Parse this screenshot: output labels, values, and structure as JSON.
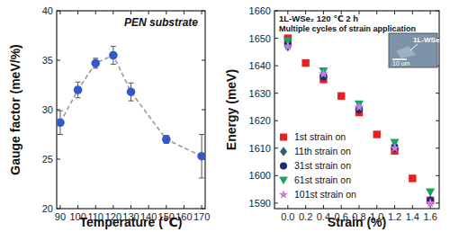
{
  "chart_data": [
    {
      "type": "scatter",
      "title": "PEN substrate",
      "x_label": "Temperature (℃)",
      "y_label": "Gauge factor (meV/%)",
      "x": [
        90,
        100,
        110,
        120,
        130,
        150,
        170
      ],
      "series": [
        {
          "values": [
            28.7,
            32.0,
            34.7,
            35.5,
            31.8,
            27.0,
            25.3
          ],
          "errors": [
            1.2,
            0.8,
            0.5,
            0.9,
            0.9,
            0.4,
            2.2
          ],
          "color": "#3358c8",
          "marker": "circle",
          "line_style": "dashed"
        }
      ],
      "xlim": [
        88,
        172
      ],
      "xticks": [
        90,
        100,
        110,
        120,
        130,
        140,
        150,
        160,
        170
      ],
      "ylim": [
        20,
        40
      ],
      "yticks": [
        20,
        25,
        30,
        35,
        40
      ],
      "grid": false
    },
    {
      "type": "scatter",
      "x_label": "Strain (%)",
      "y_label": "Energy (meV)",
      "annotations": [
        "1L-WSe₂ 120 ℃ 2 h",
        "Multiple cycles of strain application",
        "1L-WSe₂",
        "10 um"
      ],
      "x": [
        0.0,
        0.2,
        0.4,
        0.6,
        0.8,
        1.0,
        1.2,
        1.4,
        1.6
      ],
      "series": [
        {
          "name": "1st strain on",
          "color": "#e8201e",
          "marker": "square",
          "values": [
            1650,
            1641,
            1635,
            1629,
            1623,
            1615,
            1609,
            1599,
            1591
          ]
        },
        {
          "name": "11th strain on",
          "color": "#2e5d73",
          "marker": "diamond",
          "values": [
            1647,
            null,
            1637,
            null,
            1625,
            null,
            1611,
            null,
            1591
          ]
        },
        {
          "name": "31st strain on",
          "color": "#1e2a78",
          "marker": "circle",
          "values": [
            1648,
            null,
            1636,
            null,
            1624,
            null,
            1610,
            null,
            1591
          ]
        },
        {
          "name": "61st strain on",
          "color": "#1aa260",
          "marker": "triangle-down",
          "values": [
            1649,
            null,
            1638,
            null,
            1626,
            null,
            1612,
            null,
            1594
          ]
        },
        {
          "name": "101st strain on",
          "color": "#c77ddd",
          "marker": "star",
          "values": [
            1647,
            null,
            1637,
            null,
            1625,
            null,
            1610,
            null,
            1590
          ]
        }
      ],
      "xlim": [
        -0.15,
        1.7
      ],
      "xticks": [
        {
          "value": 0,
          "label": "0.0"
        },
        0.2,
        0.4,
        0.6,
        0.8,
        {
          "value": 1,
          "label": "1.0"
        },
        1.2,
        1.4,
        1.6
      ],
      "ylim": [
        1588,
        1660
      ],
      "yticks": [
        1590,
        1600,
        1610,
        1620,
        1630,
        1640,
        1650,
        1660
      ],
      "legend": "bottom-left",
      "grid": false
    }
  ]
}
